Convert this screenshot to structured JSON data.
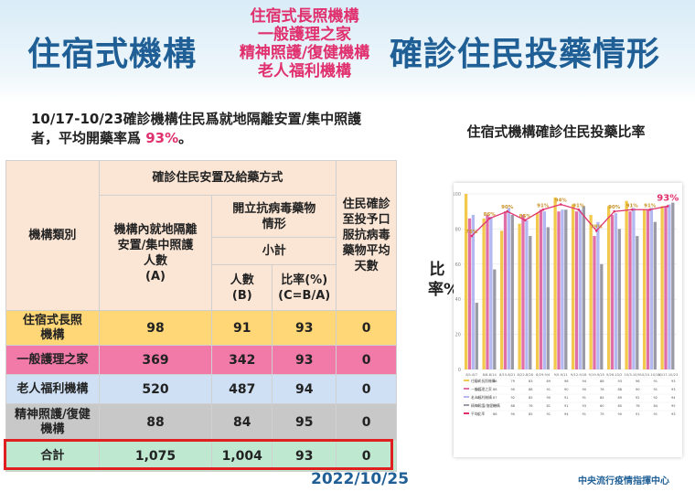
{
  "header": {
    "title_left": "住宿式機構",
    "title_right": "確診住民投藥情形",
    "middle_lines": [
      "住宿式長照機構",
      "一般護理之家",
      "精神照護/復健機構",
      "老人福利機構"
    ]
  },
  "intro": {
    "line1": "10/17-10/23確診機構住民爲就地隔離安置/集中照護",
    "line2_prefix": "者，平均開藥率爲 ",
    "line2_highlight": "93%",
    "line2_suffix": "。"
  },
  "table": {
    "header": {
      "category": "機構類別",
      "group": "確診住民安置及給藥方式",
      "col_a": [
        "機構內就地隔離",
        "安置/集中照護",
        "人數",
        "(A)"
      ],
      "col_group_bc": [
        "開立抗病毒藥物",
        "情形"
      ],
      "subtotal": "小計",
      "col_b": [
        "人數",
        "(B)"
      ],
      "col_c": [
        "比率(%)",
        "(C=B/A)"
      ],
      "col_d": [
        "住民確診",
        "至投予口",
        "服抗病毒",
        "藥物平均",
        "天數"
      ]
    },
    "rows": [
      {
        "category": [
          "住宿式長照",
          "機構"
        ],
        "a": "98",
        "b": "91",
        "c": "93",
        "d": "0"
      },
      {
        "category": [
          "一般護理之家"
        ],
        "a": "369",
        "b": "342",
        "c": "93",
        "d": "0"
      },
      {
        "category": [
          "老人福利機構"
        ],
        "a": "520",
        "b": "487",
        "c": "94",
        "d": "0"
      },
      {
        "category": [
          "精神照護/復健",
          "機構"
        ],
        "a": "88",
        "b": "84",
        "c": "95",
        "d": "0"
      },
      {
        "category": [
          "合計"
        ],
        "a": "1,075",
        "b": "1,004",
        "c": "93",
        "d": "0"
      }
    ]
  },
  "chart": {
    "title": "住宿式機構確診住民投藥比率",
    "ylabel": "比率%"
  },
  "chart_data": {
    "type": "bar",
    "categories": [
      "8/1-8/7",
      "8/8-8/14",
      "8/15-8/21",
      "8/22-8/28",
      "8/29-9/4",
      "9/5-9/11",
      "9/12-9/18",
      "9/19-9/25",
      "9/26-10/2",
      "10/3-10/9",
      "10/10-10/16",
      "10/17-10/23"
    ],
    "ylim": [
      0,
      100
    ],
    "yticks": [
      0,
      20,
      40,
      60,
      80,
      100
    ],
    "series": [
      {
        "name": "住宿式長照機構",
        "color": "#f2c94c",
        "values": [
          100,
          86,
          79,
          83,
          89,
          98,
          94,
          88,
          93,
          96,
          91,
          93
        ]
      },
      {
        "name": "一般護理之家",
        "color": "#e06fa8",
        "values": [
          86,
          88,
          90,
          88,
          91,
          90,
          90,
          76,
          88,
          90,
          91,
          93
        ]
      },
      {
        "name": "老人福利機構",
        "color": "#b3b8f0",
        "values": [
          88,
          87,
          92,
          85,
          90,
          91,
          91,
          84,
          89,
          92,
          92,
          94
        ]
      },
      {
        "name": "精神照護/復健機構",
        "color": "#9a9aa6",
        "values": [
          38,
          57,
          88,
          76,
          81,
          91,
          93,
          60,
          80,
          76,
          84,
          95
        ]
      },
      {
        "name": "平均比率",
        "color": "#e0306d",
        "values": [
          76,
          86,
          90,
          85,
          91,
          94,
          91,
          79,
          90,
          91,
          91,
          93
        ],
        "type": "line"
      }
    ],
    "line_labels": [
      "76%",
      "86%",
      "90%",
      "85%",
      "91%",
      "94%",
      "91%",
      "79%",
      "90%",
      "91%",
      "91%",
      "93%"
    ]
  },
  "footer": {
    "date": "2022/10/25",
    "org": "中央流行疫情指揮中心"
  }
}
